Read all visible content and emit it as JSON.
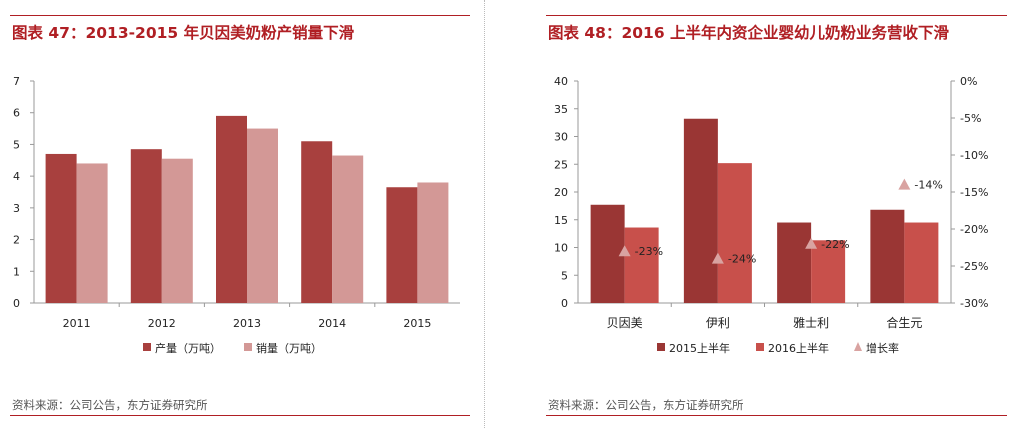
{
  "left": {
    "title": "图表 47：2013-2015 年贝因美奶粉产销量下滑",
    "source": "资料来源：公司公告，东方证券研究所"
  },
  "right": {
    "title": "图表 48：2016 上半年内资企业婴幼儿奶粉业务营收下滑",
    "source": "资料来源：公司公告，东方证券研究所"
  },
  "colors": {
    "accent": "#b01f24",
    "production": "#a8403e",
    "sales": "#d39896",
    "h1_2015": "#9a3634",
    "h1_2016": "#c8504b",
    "growth": "#d9a3a1"
  },
  "chart_data": [
    {
      "type": "bar",
      "categories": [
        "2011",
        "2012",
        "2013",
        "2014",
        "2015"
      ],
      "series": [
        {
          "name": "产量（万吨）",
          "values": [
            4.7,
            4.85,
            5.9,
            5.1,
            3.65
          ]
        },
        {
          "name": "销量（万吨）",
          "values": [
            4.4,
            4.55,
            5.5,
            4.65,
            3.8
          ]
        }
      ],
      "ylim": [
        0,
        7
      ],
      "yticks": [
        "0",
        "1",
        "2",
        "3",
        "4",
        "5",
        "6",
        "7"
      ],
      "legend_position": "bottom"
    },
    {
      "type": "bar",
      "categories": [
        "贝因美",
        "伊利",
        "雅士利",
        "合生元"
      ],
      "series": [
        {
          "name": "2015上半年",
          "values": [
            17.7,
            33.2,
            14.5,
            16.8
          ]
        },
        {
          "name": "2016上半年",
          "values": [
            13.6,
            25.2,
            11.3,
            14.5
          ]
        },
        {
          "name": "增长率",
          "values": [
            -23,
            -24,
            -22,
            -14
          ],
          "labels": [
            "-23%",
            "-24%",
            "-22%",
            "-14%"
          ],
          "axis": "right",
          "marker": "triangle"
        }
      ],
      "ylim": [
        0,
        40
      ],
      "yticks": [
        "0",
        "5",
        "10",
        "15",
        "20",
        "25",
        "30",
        "35",
        "40"
      ],
      "y2lim": [
        -30,
        0
      ],
      "y2ticks": [
        "-30%",
        "-25%",
        "-20%",
        "-15%",
        "-10%",
        "-5%",
        "0%"
      ],
      "legend_position": "bottom"
    }
  ]
}
